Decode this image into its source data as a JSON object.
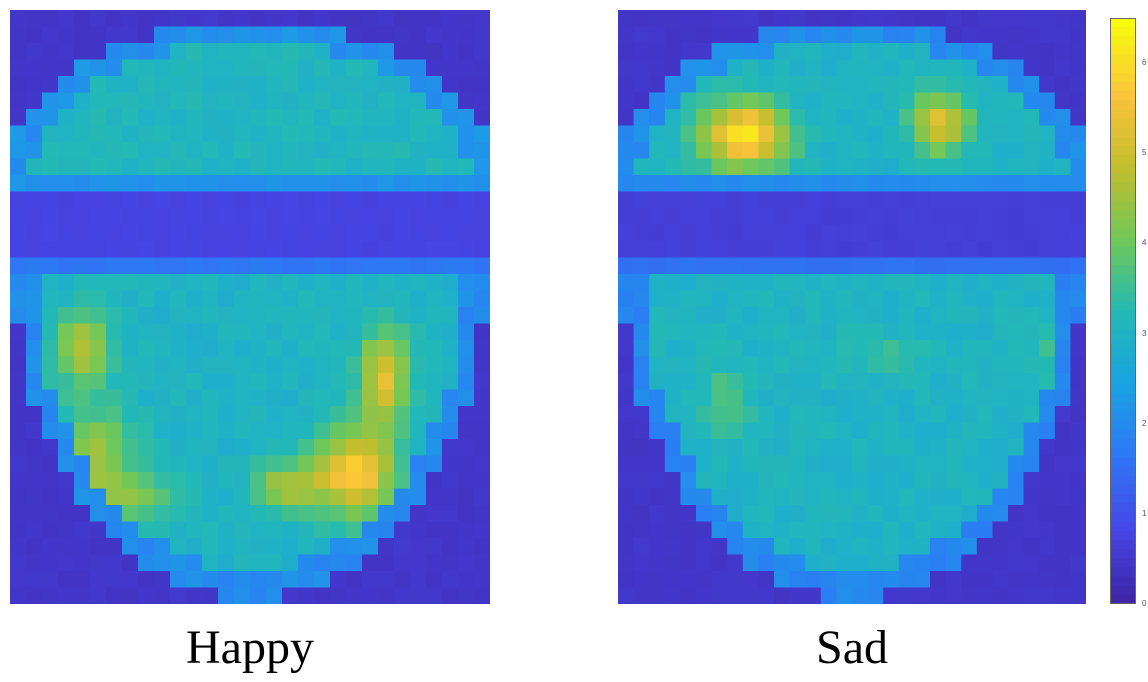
{
  "colors": {
    "low": "#3e26a8",
    "mid": "#1fa1d6",
    "teal": "#2ab9b0",
    "green": "#8cc83a",
    "high": "#f9fb0e"
  },
  "chart_data": [
    {
      "type": "heatmap",
      "title": "Happy",
      "grid": false,
      "zlim": [
        0,
        6.5
      ],
      "regions": {
        "background": 0.4,
        "forehead": 3.1,
        "forehead_rim": 2.1,
        "gap_band": 0.7,
        "lower_face": 3.0,
        "lower_rim": 2.0,
        "hotspots": [
          {
            "name": "left-cheek-upper",
            "peak": 5.0
          },
          {
            "name": "left-cheek-lower",
            "peak": 4.8
          },
          {
            "name": "right-cheek",
            "peak": 6.1
          },
          {
            "name": "right-cheek-lower",
            "peak": 5.8
          }
        ]
      }
    },
    {
      "type": "heatmap",
      "title": "Sad",
      "grid": false,
      "zlim": [
        0,
        6.5
      ],
      "regions": {
        "background": 0.4,
        "forehead": 3.0,
        "forehead_rim": 2.0,
        "gap_band": 0.6,
        "lower_face": 3.0,
        "lower_rim": 1.9,
        "hotspots": [
          {
            "name": "left-brow",
            "peak": 6.3
          },
          {
            "name": "right-brow",
            "peak": 5.4
          },
          {
            "name": "left-cheek-edge",
            "peak": 4.0
          },
          {
            "name": "left-cheek",
            "peak": 3.8
          }
        ]
      }
    }
  ],
  "colorbar": {
    "ticks": [
      "0",
      "1",
      "2",
      "3",
      "4",
      "5",
      "6"
    ]
  },
  "captions": {
    "happy": "Happy",
    "sad": "Sad"
  }
}
